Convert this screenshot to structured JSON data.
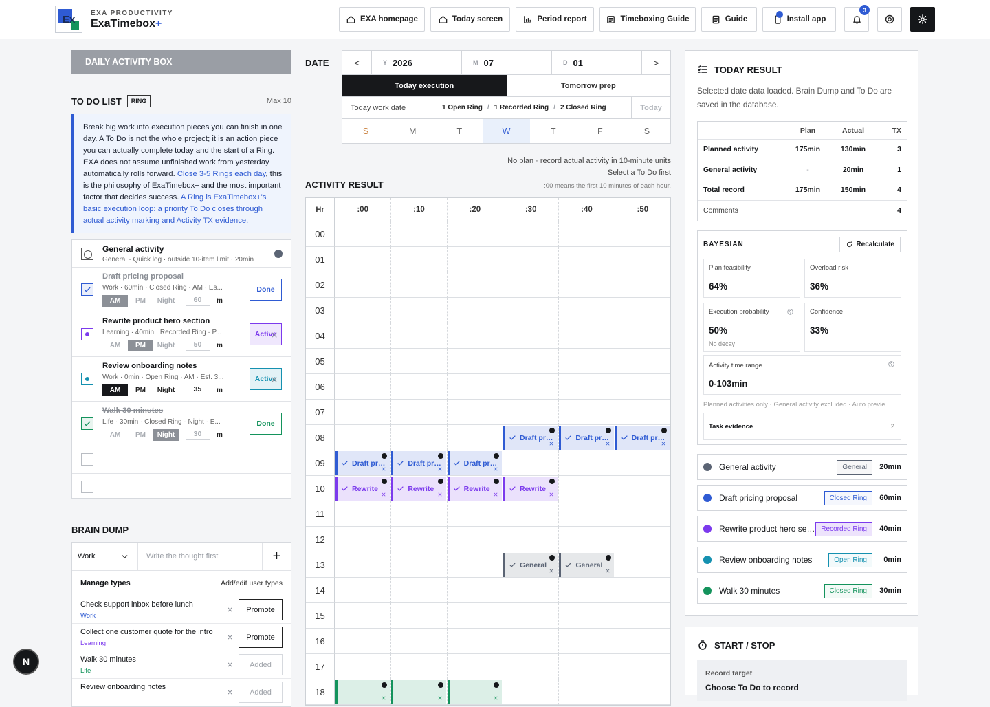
{
  "header": {
    "logo_text": "Ex",
    "brand_small": "EXA PRODUCTIVITY",
    "brand_name": "ExaTimebox",
    "brand_plus": "+",
    "nav": [
      "EXA homepage",
      "Today screen",
      "Period report",
      "Timeboxing Guide",
      "Guide",
      "Install app"
    ],
    "notifications": 3
  },
  "left": {
    "daily_box": "DAILY ACTIVITY BOX",
    "todo": {
      "title": "TO DO LIST",
      "badge": "RING",
      "max": "Max 10",
      "info": [
        {
          "text": "Break big work into execution pieces you can finish in one day. A To Do is not the whole project; it is an action piece you can actually complete today and the start of a Ring. EXA does not assume unfinished work from yesterday automatically rolls forward. ",
          "style": "plain"
        },
        {
          "text": "Close 3-5 Rings each day",
          "style": "link"
        },
        {
          "text": ", this is the philosophy of ExaTimebox+ and the most important factor that decides success. ",
          "style": "plain"
        },
        {
          "text": "A Ring is ExaTimebox+'s basic execution loop: a priority To Do closes through actual activity marking and Activity TX evidence.",
          "style": "link"
        }
      ],
      "general": {
        "title": "General activity",
        "sub": "General · Quick log · outside 10-item limit · 20min",
        "color": "#5b6474"
      },
      "slots": [
        "AM",
        "PM",
        "Night"
      ],
      "unit": "m",
      "items": [
        {
          "title": "Draft pricing proposal",
          "sub": "Work · 60min · Closed Ring · AM · Es...",
          "status": "done",
          "button": "Done",
          "slot": "AM",
          "minutes": 60,
          "color": "#2f5bd3"
        },
        {
          "title": "Rewrite product hero section",
          "sub": "Learning · 40min · Recorded Ring · P...",
          "status": "active",
          "button": "Active",
          "slot": "PM",
          "minutes": 50,
          "color": "#7c3aed"
        },
        {
          "title": "Review onboarding notes",
          "sub": "Work · 0min · Open Ring · AM · Est. 3...",
          "status": "active",
          "button": "Active",
          "slot": "AM",
          "minutes": 35,
          "color": "#1591b0",
          "focus": true
        },
        {
          "title": "Walk 30 minutes",
          "sub": "Life · 30min · Closed Ring · Night · E...",
          "status": "done",
          "button": "Done",
          "slot": "Night",
          "minutes": 30,
          "color": "#14935c"
        }
      ],
      "empty_rows": 2
    },
    "brain_dump": {
      "title": "BRAIN DUMP",
      "type": "Work",
      "placeholder": "Write the thought first",
      "add": "+",
      "manage": "Manage types",
      "manage_link": "Add/edit user types",
      "items": [
        {
          "text": "Check support inbox before lunch",
          "type": "Work",
          "color": "#2f5bd3",
          "button": "Promote"
        },
        {
          "text": "Collect one customer quote for the intro",
          "type": "Learning",
          "color": "#7c3aed",
          "button": "Promote"
        },
        {
          "text": "Walk 30 minutes",
          "type": "Life",
          "color": "#14935c",
          "button": "Added"
        },
        {
          "text": "Review onboarding notes",
          "button": "Added"
        }
      ]
    }
  },
  "middle": {
    "date_label": "DATE",
    "prev": "<",
    "next": ">",
    "fields": [
      {
        "label": "Y",
        "value": "2026"
      },
      {
        "label": "M",
        "value": "07"
      },
      {
        "label": "D",
        "value": "01"
      }
    ],
    "tabs": [
      "Today execution",
      "Tomorrow prep"
    ],
    "active_tab": 0,
    "work_date": "Today work date",
    "stats": [
      "1 Open Ring",
      "1 Recorded Ring",
      "2 Closed Ring"
    ],
    "separator": "/",
    "today": "Today",
    "weekdays": [
      "S",
      "M",
      "T",
      "W",
      "T",
      "F",
      "S"
    ],
    "selected_day": 3,
    "notes": [
      "No plan · record actual activity in 10-minute units",
      "Select a To Do first",
      ":00 means the first 10 minutes of each hour."
    ],
    "title": "ACTIVITY RESULT",
    "hr": "Hr",
    "minutes": [
      ":00",
      ":10",
      ":20",
      ":30",
      ":40",
      ":50"
    ],
    "hours": [
      "00",
      "01",
      "02",
      "03",
      "04",
      "05",
      "06",
      "07",
      "08",
      "09",
      "10",
      "11",
      "12",
      "13",
      "14",
      "15",
      "16",
      "17",
      "18"
    ],
    "blocks": [
      {
        "hour": "08",
        "minute": ":30",
        "label": "Draft pricing proposal",
        "color": "#2f5bd3"
      },
      {
        "hour": "08",
        "minute": ":40",
        "label": "Draft pricing proposal",
        "color": "#2f5bd3"
      },
      {
        "hour": "08",
        "minute": ":50",
        "label": "Draft pricing proposal",
        "color": "#2f5bd3"
      },
      {
        "hour": "09",
        "minute": ":00",
        "label": "Draft pricing proposal",
        "color": "#2f5bd3"
      },
      {
        "hour": "09",
        "minute": ":10",
        "label": "Draft pricing proposal",
        "color": "#2f5bd3"
      },
      {
        "hour": "09",
        "minute": ":20",
        "label": "Draft pricing proposal",
        "color": "#2f5bd3"
      },
      {
        "hour": "10",
        "minute": ":00",
        "label": "Rewrite",
        "color": "#7c3aed"
      },
      {
        "hour": "10",
        "minute": ":10",
        "label": "Rewrite",
        "color": "#7c3aed"
      },
      {
        "hour": "10",
        "minute": ":20",
        "label": "Rewrite",
        "color": "#7c3aed"
      },
      {
        "hour": "10",
        "minute": ":30",
        "label": "Rewrite",
        "color": "#7c3aed"
      },
      {
        "hour": "13",
        "minute": ":30",
        "label": "General",
        "color": "#5b6474"
      },
      {
        "hour": "13",
        "minute": ":40",
        "label": "General",
        "color": "#5b6474"
      },
      {
        "hour": "18",
        "minute": ":00",
        "color": "#14935c"
      },
      {
        "hour": "18",
        "minute": ":10",
        "color": "#14935c"
      },
      {
        "hour": "18",
        "minute": ":20",
        "color": "#14935c"
      }
    ]
  },
  "right": {
    "title": "TODAY RESULT",
    "desc": "Selected date data loaded. Brain Dump and To Do are saved in the database.",
    "table": {
      "columns": [
        "Plan",
        "Actual",
        "TX"
      ],
      "rows": [
        {
          "label": "Planned activity",
          "cells": [
            "175min",
            "130min",
            3
          ]
        },
        {
          "label": "General activity",
          "cells": [
            "-",
            "20min",
            1
          ]
        },
        {
          "label": "Total record",
          "cells": [
            "175min",
            "150min",
            4
          ]
        }
      ],
      "comments": {
        "label": "Comments",
        "value": 4
      }
    },
    "bayesian": {
      "title": "BAYESIAN",
      "button": "Recalculate",
      "cards": [
        {
          "label": "Plan feasibility",
          "value": "64%"
        },
        {
          "label": "Overload risk",
          "value": "36%"
        },
        {
          "label": "Execution probability",
          "value": "50%",
          "note": "No decay"
        },
        {
          "label": "Confidence",
          "value": "33%"
        }
      ],
      "range": {
        "label": "Activity time range",
        "value": "0-103min"
      },
      "footnote": "Planned activities only · General activity excluded · Auto previe...",
      "evidence": {
        "label": "Task evidence",
        "value": 2
      }
    },
    "summary": [
      {
        "name": "General activity",
        "tag": "General",
        "minutes": "20min",
        "color": "#5b6474"
      },
      {
        "name": "Draft pricing proposal",
        "tag": "Closed Ring",
        "minutes": "60min",
        "color": "#2f5bd3"
      },
      {
        "name": "Rewrite product hero section",
        "tag": "Recorded Ring",
        "minutes": "40min",
        "color": "#7c3aed"
      },
      {
        "name": "Review onboarding notes",
        "tag": "Open Ring",
        "minutes": "0min",
        "color": "#1591b0"
      },
      {
        "name": "Walk 30 minutes",
        "tag": "Closed Ring",
        "minutes": "30min",
        "color": "#14935c"
      }
    ],
    "start_stop": {
      "title": "START / STOP",
      "record_target": "Record target",
      "choose": "Choose To Do to record"
    }
  },
  "floating": "N"
}
